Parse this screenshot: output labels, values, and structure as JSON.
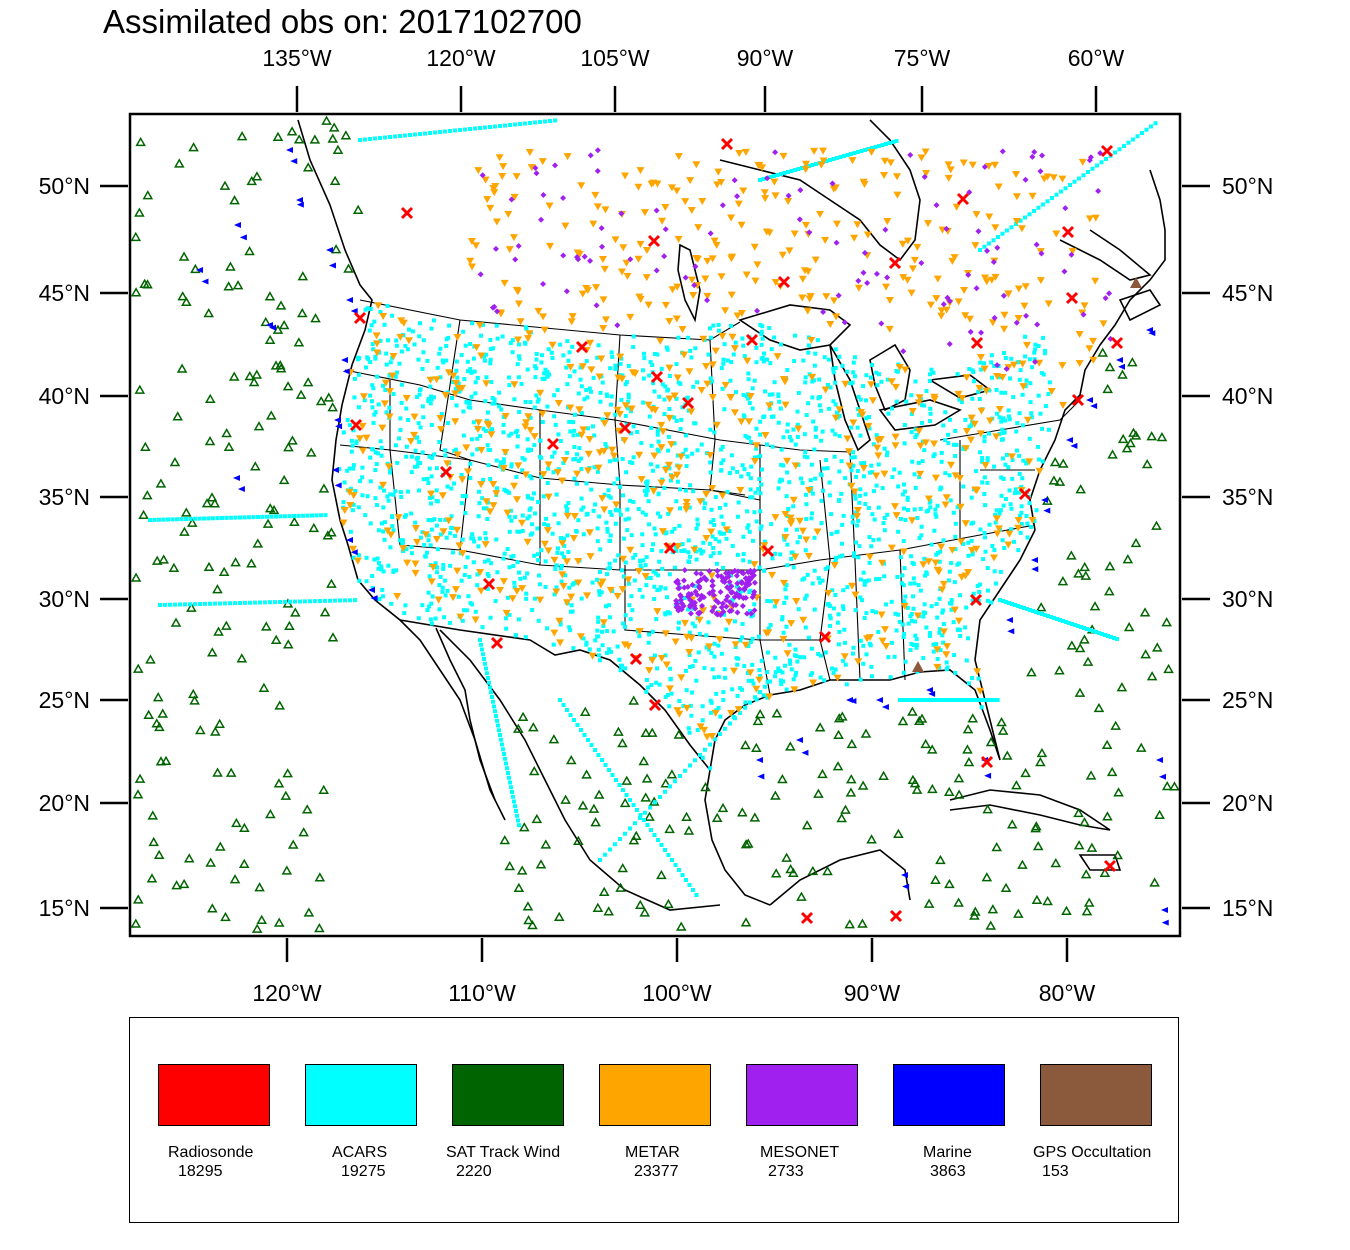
{
  "title": "Assimilated obs on: 2017102700",
  "map": {
    "top_lon_labels": [
      "135°W",
      "120°W",
      "105°W",
      "90°W",
      "75°W",
      "60°W"
    ],
    "bottom_lon_labels": [
      "120°W",
      "110°W",
      "100°W",
      "90°W",
      "80°W"
    ],
    "lat_labels": [
      "50°N",
      "45°N",
      "40°N",
      "35°N",
      "30°N",
      "25°N",
      "20°N",
      "15°N"
    ]
  },
  "legend": [
    {
      "name": "Radiosonde",
      "count": "18295",
      "color": "#ff0000"
    },
    {
      "name": "ACARS",
      "count": "19275",
      "color": "#00ffff"
    },
    {
      "name": "SAT Track Wind",
      "count": "2220",
      "color": "#006400"
    },
    {
      "name": "METAR",
      "count": "23377",
      "color": "#ffa500"
    },
    {
      "name": "MESONET",
      "count": "2733",
      "color": "#a020f0"
    },
    {
      "name": "Marine",
      "count": "3863",
      "color": "#0000ff"
    },
    {
      "name": "GPS Occultation",
      "count": "153",
      "color": "#8b5a3c"
    }
  ]
}
